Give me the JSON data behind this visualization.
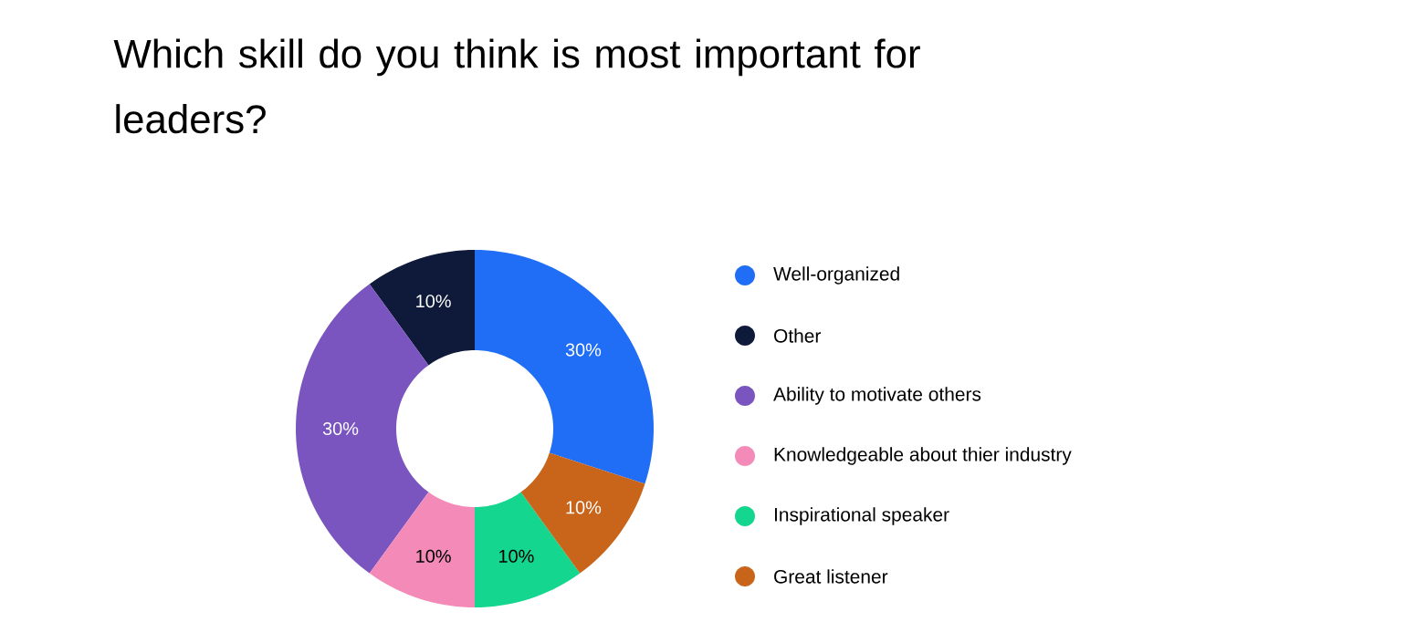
{
  "chart_data": {
    "type": "donut",
    "title": "Which skill do you think is most important for leaders?",
    "categories": [
      "Well-organized",
      "Other",
      "Ability to motivate others",
      "Knowledgeable about thier industry",
      "Inspirational speaker",
      "Great listener"
    ],
    "values": [
      30,
      10,
      30,
      10,
      10,
      10
    ],
    "colors": [
      "#1f6ef5",
      "#0f1a3a",
      "#7a55c0",
      "#f48ab8",
      "#14d68f",
      "#c8651a"
    ],
    "value_labels": [
      "30%",
      "10%",
      "30%",
      "10%",
      "10%",
      "10%"
    ],
    "legend": "right"
  }
}
